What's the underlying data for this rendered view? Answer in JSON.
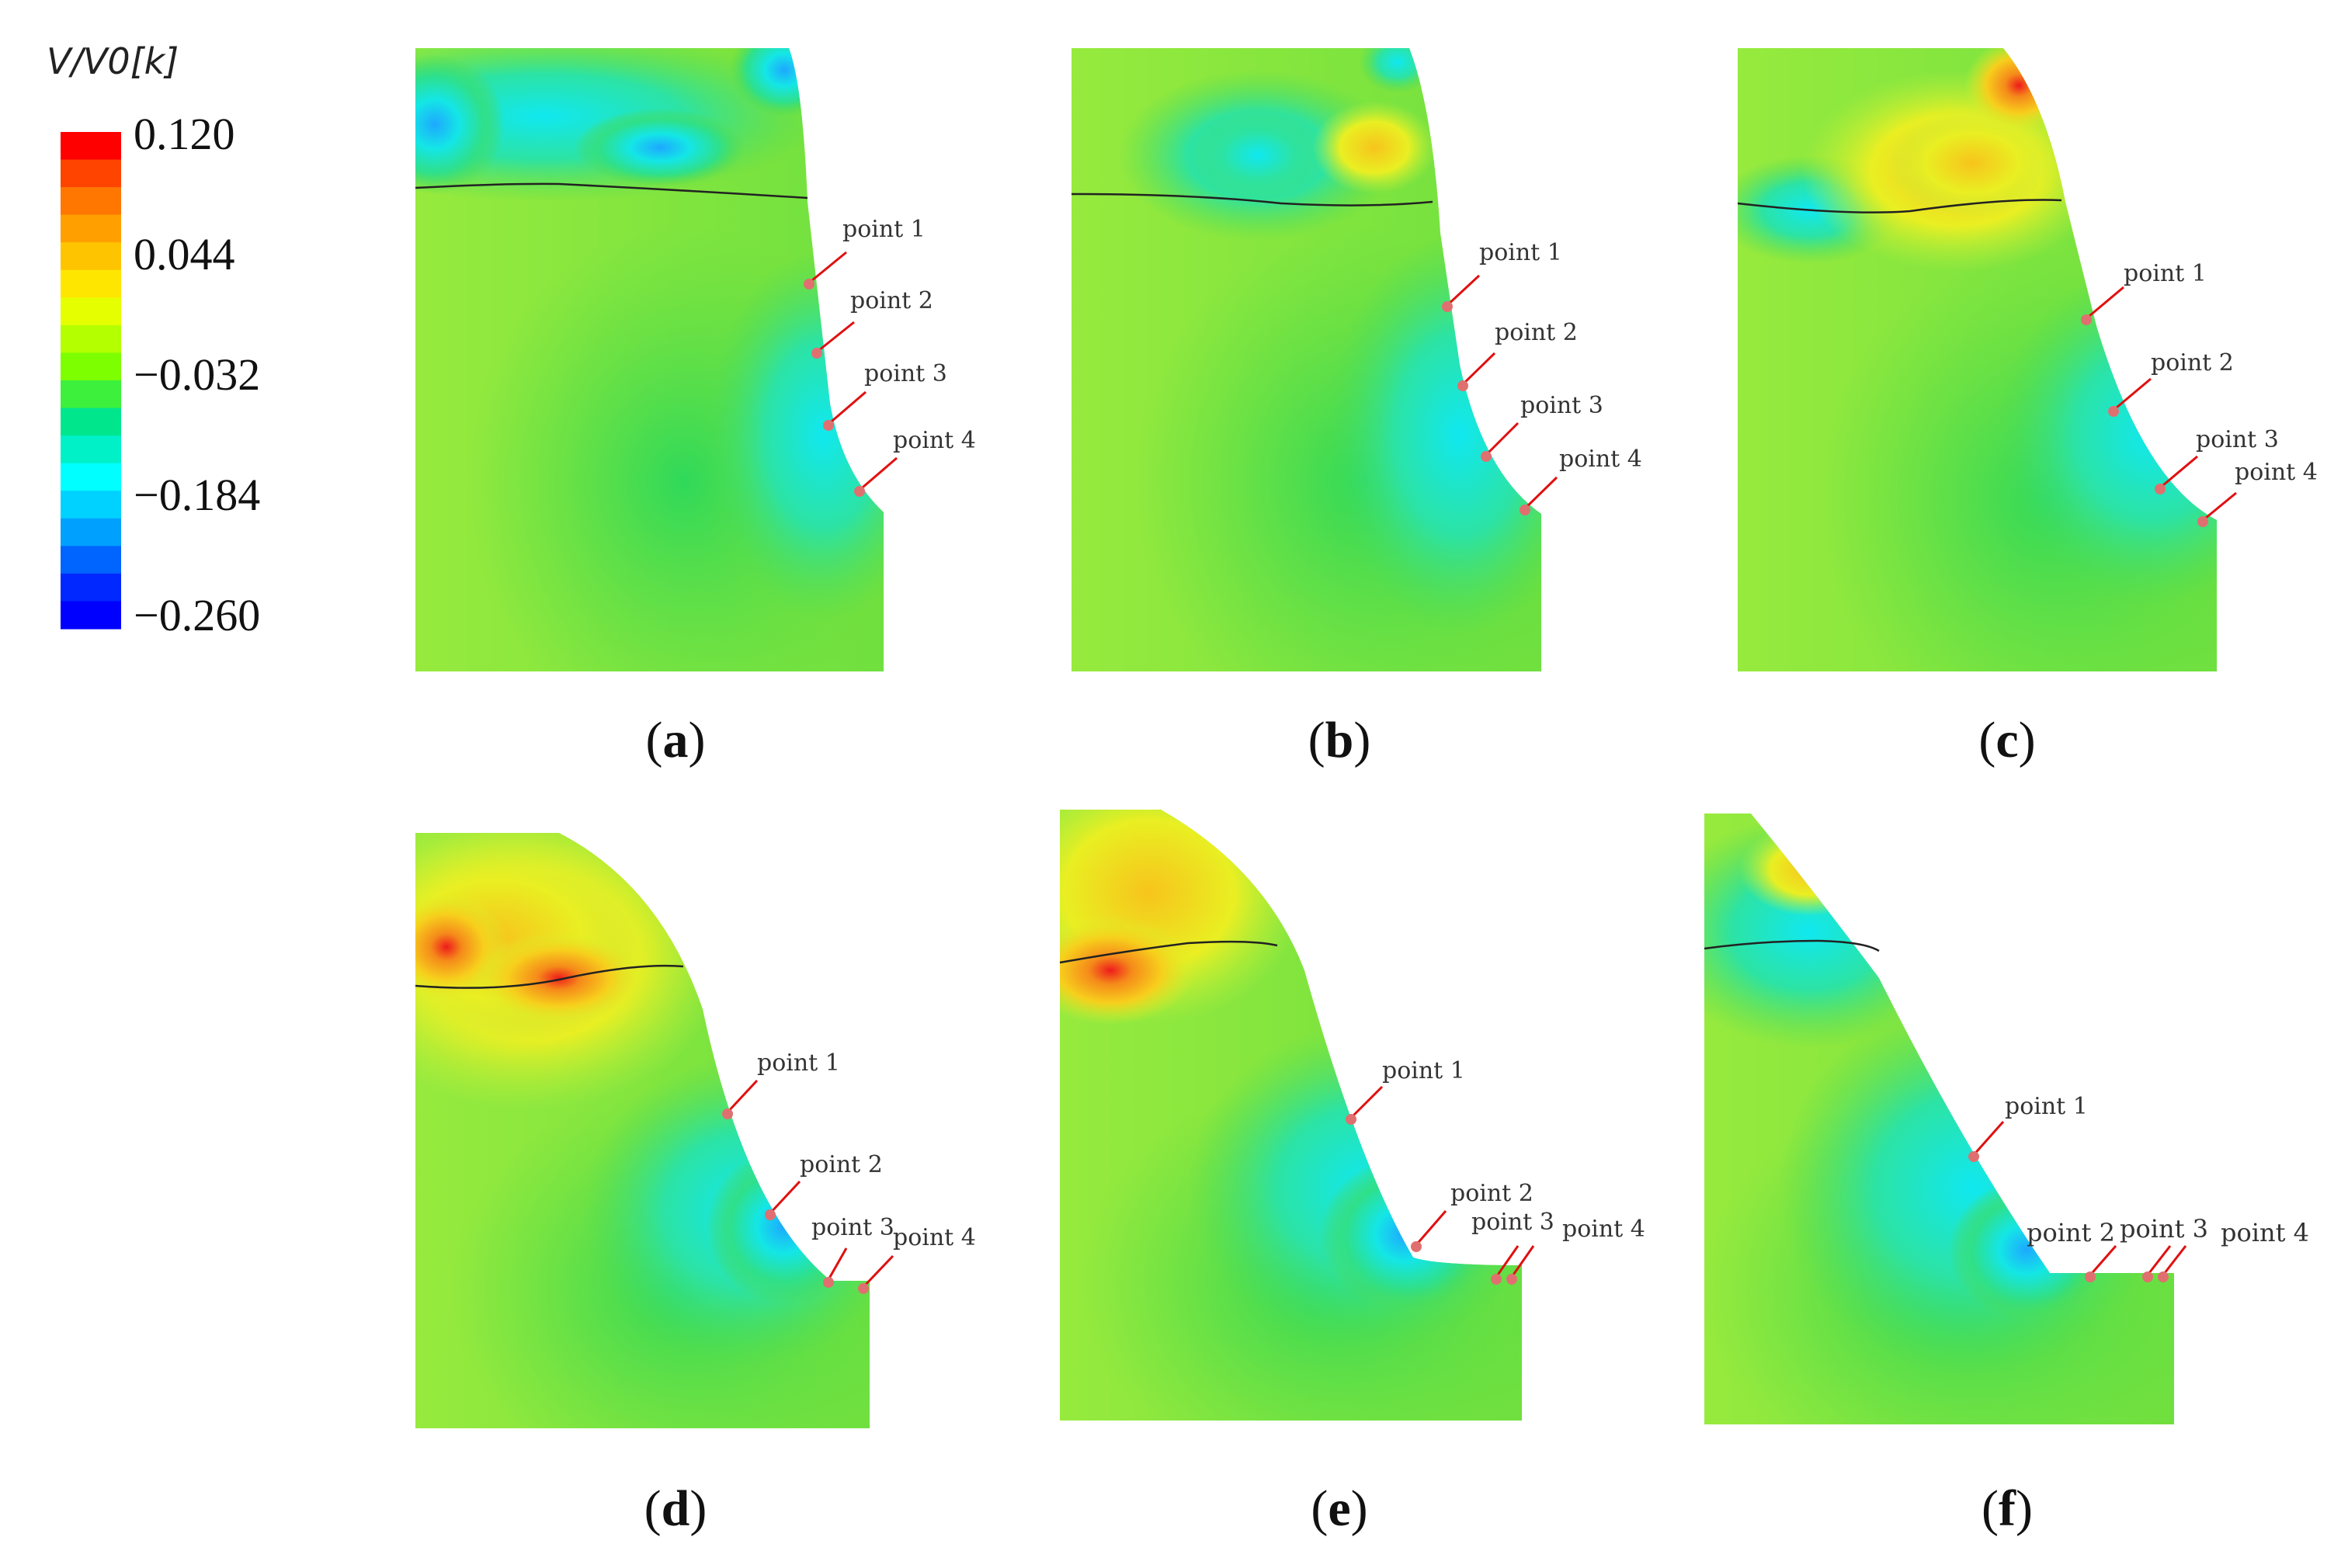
{
  "legend": {
    "title": "V/V0[k]",
    "ticks": [
      "0.120",
      "0.044",
      "−0.032",
      "−0.184",
      "−0.260"
    ],
    "colors": [
      "#ff0000",
      "#ff4400",
      "#ff7700",
      "#ffa000",
      "#ffc400",
      "#ffe600",
      "#e6ff00",
      "#b4ff00",
      "#7dff00",
      "#3cf03c",
      "#00e68c",
      "#00f0c8",
      "#00ffff",
      "#00d2ff",
      "#00a0ff",
      "#0064ff",
      "#0028ff",
      "#0000ff"
    ]
  },
  "panels": [
    {
      "caption_letter": "a",
      "points": [
        "point 1",
        "point 2",
        "point 3",
        "point 4"
      ]
    },
    {
      "caption_letter": "b",
      "points": [
        "point 1",
        "point 2",
        "point 3",
        "point 4"
      ]
    },
    {
      "caption_letter": "c",
      "points": [
        "point 1",
        "point 2",
        "point 3",
        "point 4"
      ]
    },
    {
      "caption_letter": "d",
      "points": [
        "point 1",
        "point 2",
        "point 3",
        "point 4"
      ]
    },
    {
      "caption_letter": "e",
      "points": [
        "point 1",
        "point 2",
        "point 3",
        "point 4"
      ]
    },
    {
      "caption_letter": "f",
      "points": [
        "point 1",
        "point 2",
        "point 3",
        "point 4"
      ]
    }
  ],
  "colors": {
    "field_base": "#8ee63a",
    "field_green": "#3fd94a",
    "field_cyan": "#19f0d2",
    "field_blue": "#3aa6ff",
    "field_yellow": "#e8f020",
    "field_orange": "#f5b21c",
    "field_red": "#ee1c1c",
    "pointer": "#e01010",
    "interface_line": "#222222"
  }
}
